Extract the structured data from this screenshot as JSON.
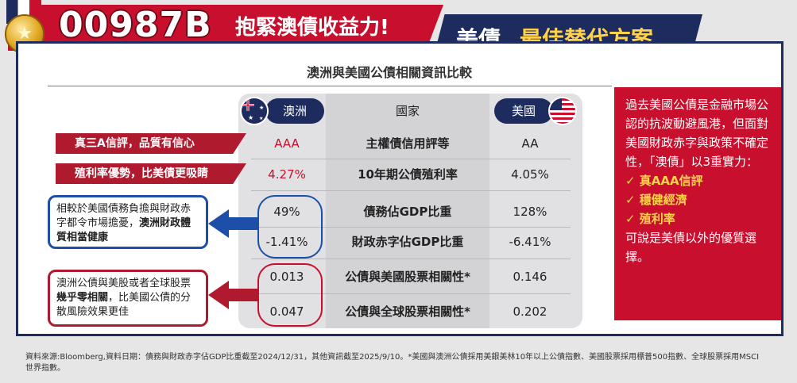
{
  "banner": {
    "code": "00987B",
    "slogan": "抱緊澳債收益力!",
    "tagline_prefix": "美債",
    "tagline_highlight": "最佳替代方案",
    "medal_icon": "star-medal-icon"
  },
  "comparison": {
    "subtitle": "澳洲與美國公債相關資訊比較",
    "headers": {
      "au": "澳洲",
      "mid": "國家",
      "us": "美國"
    },
    "rows": [
      {
        "au": "AAA",
        "metric": "主權債信用評等",
        "us": "AA"
      },
      {
        "au": "4.27%",
        "metric": "10年期公債殖利率",
        "us": "4.05%"
      },
      {
        "au": "49%",
        "metric": "債務佔GDP比重",
        "us": "128%"
      },
      {
        "au": "-1.41%",
        "metric": "財政赤字佔GDP比重",
        "us": "-6.41%"
      },
      {
        "au": "0.013",
        "metric": "公債與美國股票相關性*",
        "us": "0.146"
      },
      {
        "au": "0.047",
        "metric": "公債與全球股票相關性*",
        "us": "0.202"
      }
    ]
  },
  "callouts": {
    "tag1": "真三A信評，品質有信心",
    "tag2": "殖利率優勢，比美債更吸睛",
    "note1_plain": "相較於美國債務負擔與財政赤字都令市場擔憂，",
    "note1_bold": "澳洲財政體質相當健康",
    "note2_a": "澳洲公債與美股或者全球股票",
    "note2_bold": "幾乎零相關",
    "note2_b": "，比美國公債的分散風險效果更佳"
  },
  "side_panel": {
    "intro": "過去美國公債是金融市場公認的抗波動避風港，但面對美國財政赤字與政策不確定性，「澳債」以3重實力：",
    "points": [
      "真AAA信評",
      "穩健經濟",
      "殖利率"
    ],
    "outro": "可說是美債以外的優質選擇。"
  },
  "footer": "資料來源:Bloomberg,資料日期：債務與財政赤字佔GDP比重截至2024/12/31，其他資訊截至2025/9/10。*美國與澳洲公債採用美銀美林10年以上公債指數、美國股票採用標普500指數、全球股票採用MSCI世界指數。",
  "colors": {
    "red": "#c8102e",
    "navy": "#1e2b5e",
    "gold": "#ffd24a"
  }
}
